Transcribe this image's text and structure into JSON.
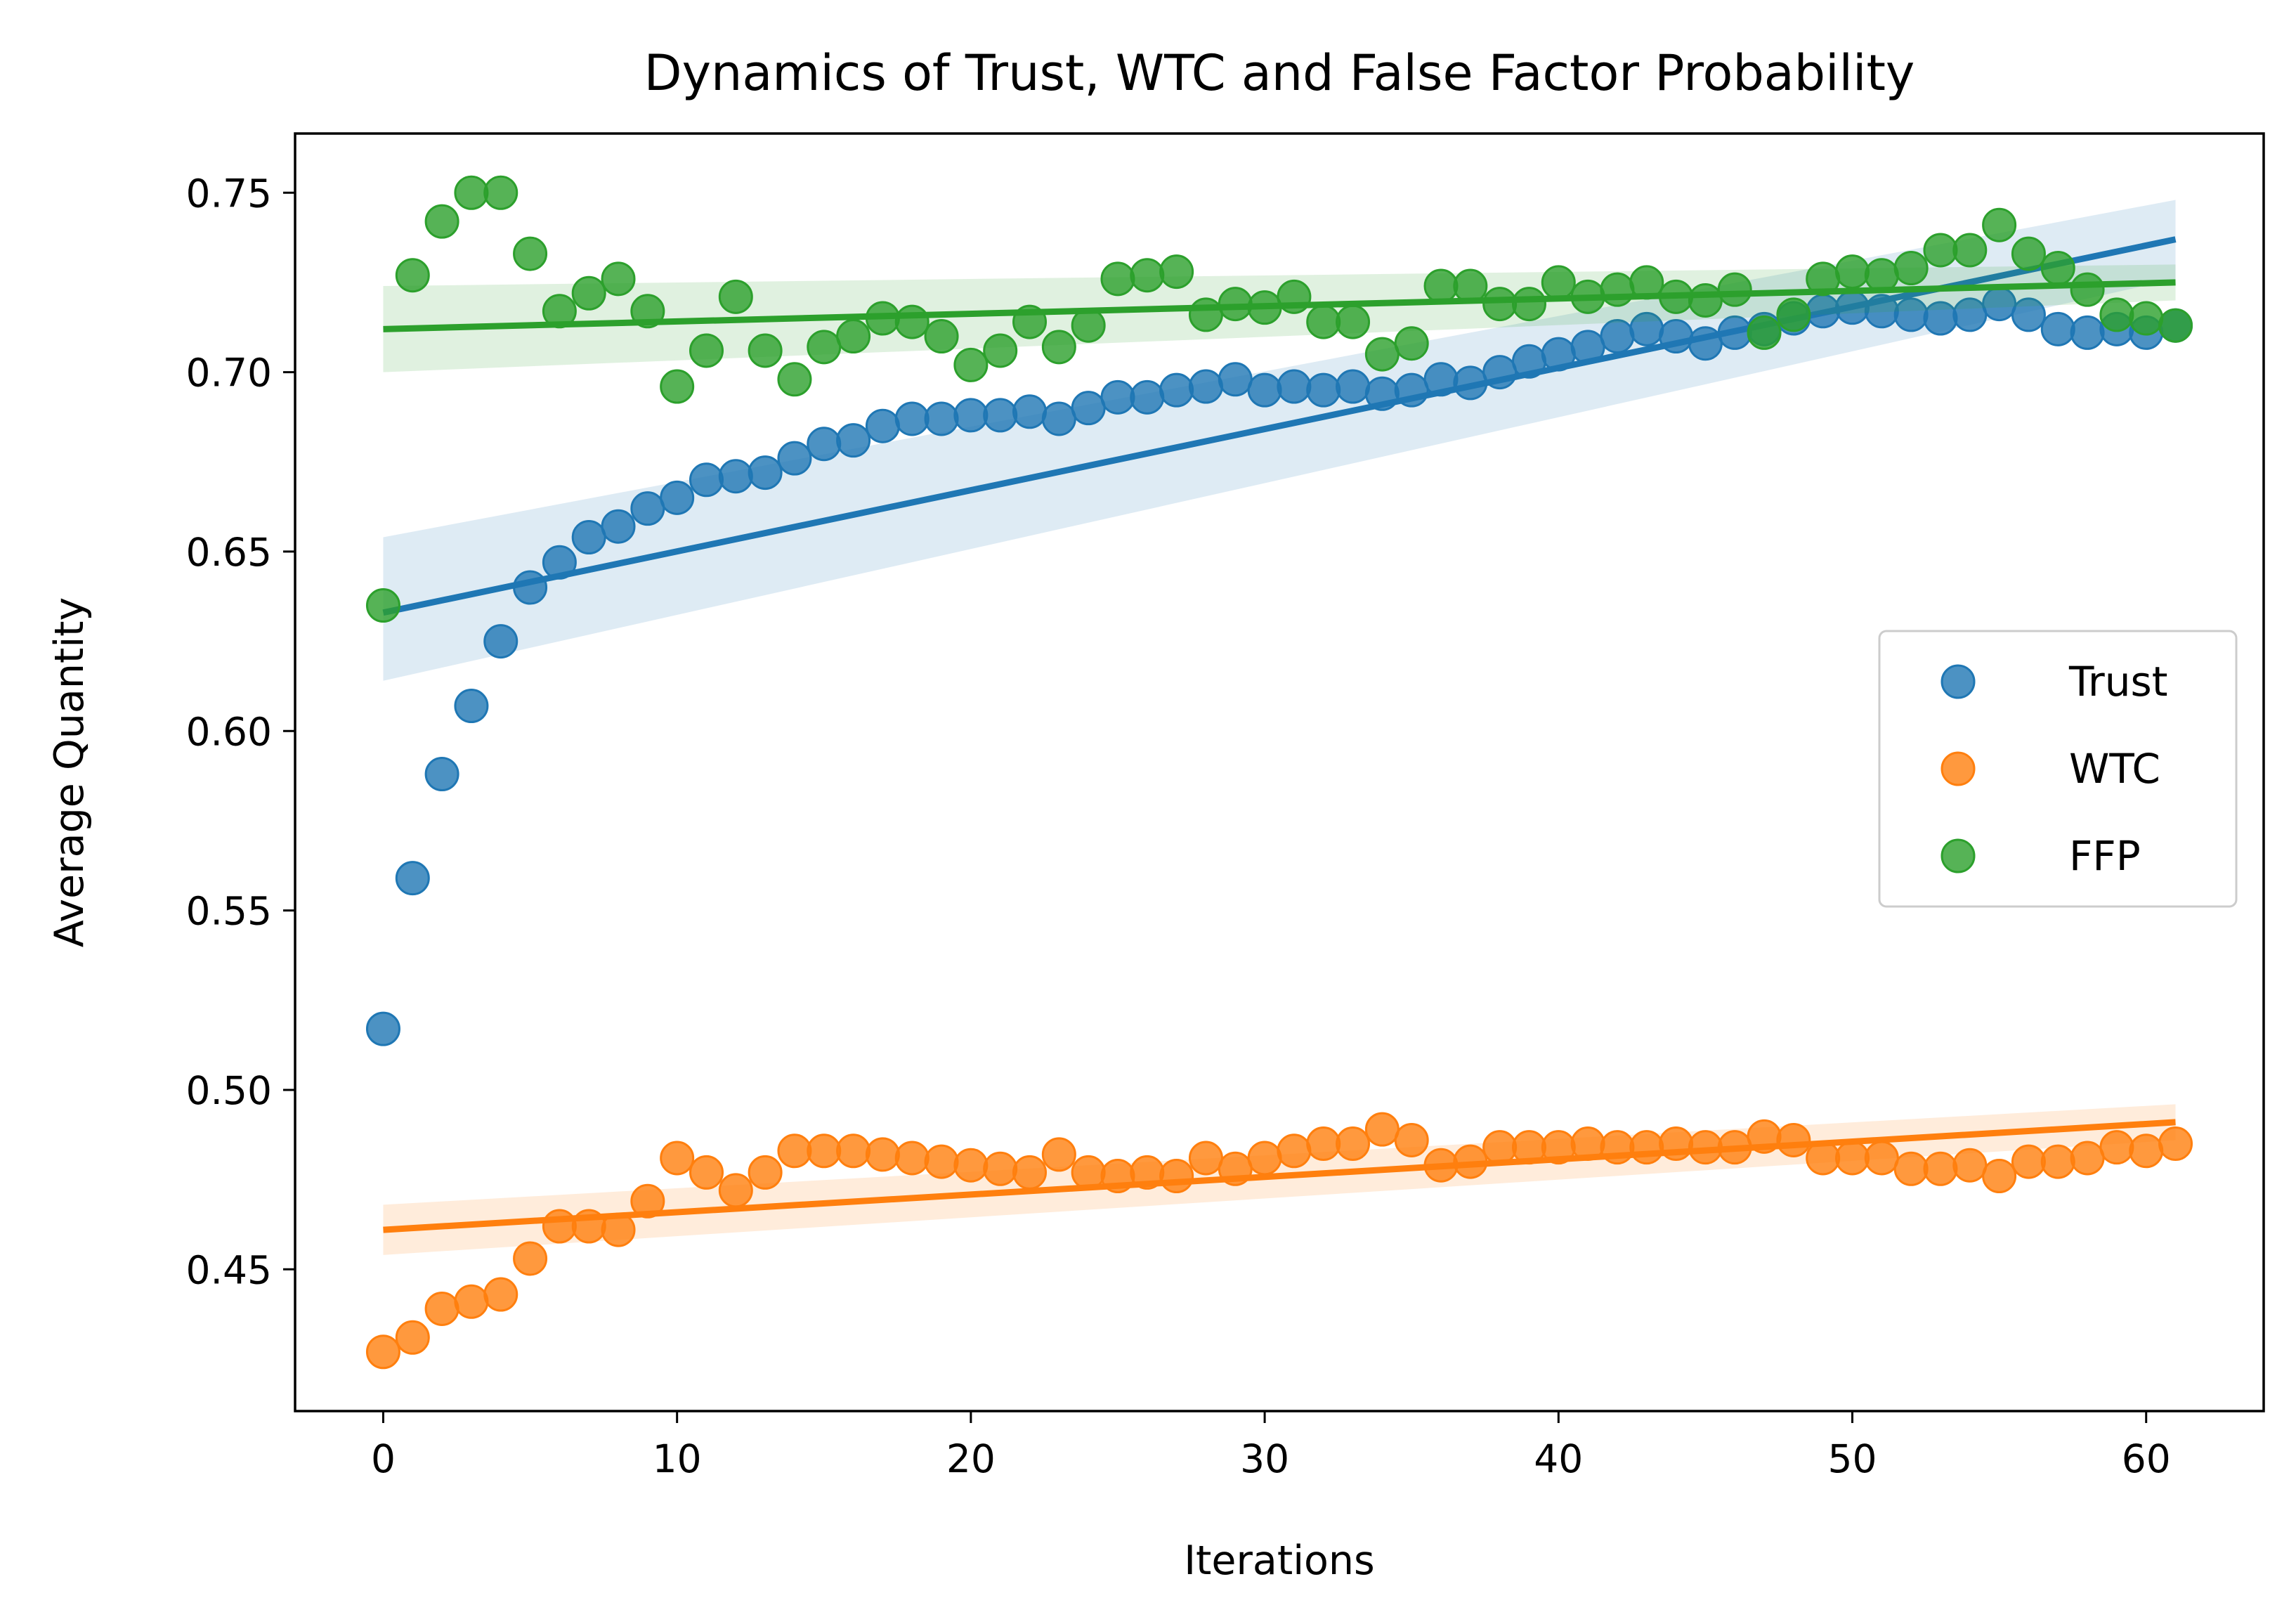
{
  "chart_data": {
    "type": "scatter",
    "title": "Dynamics of Trust, WTC and False Factor Probability",
    "xlabel": "Iterations",
    "ylabel": "Average Quantity",
    "xlim": [
      -3,
      64
    ],
    "ylim": [
      0.4105,
      0.7665
    ],
    "xticks": [
      0,
      10,
      20,
      30,
      40,
      50,
      60
    ],
    "yticks": [
      0.45,
      0.5,
      0.55,
      0.6,
      0.65,
      0.7,
      0.75
    ],
    "ytick_labels": [
      "0.45",
      "0.50",
      "0.55",
      "0.60",
      "0.65",
      "0.70",
      "0.75"
    ],
    "grid": false,
    "legend_position": "center-right",
    "x": [
      0,
      1,
      2,
      3,
      4,
      5,
      6,
      7,
      8,
      9,
      10,
      11,
      12,
      13,
      14,
      15,
      16,
      17,
      18,
      19,
      20,
      21,
      22,
      23,
      24,
      25,
      26,
      27,
      28,
      29,
      30,
      31,
      32,
      33,
      34,
      35,
      36,
      37,
      38,
      39,
      40,
      41,
      42,
      43,
      44,
      45,
      46,
      47,
      48,
      49,
      50,
      51,
      52,
      53,
      54,
      55,
      56,
      57,
      58,
      59,
      60,
      61
    ],
    "series": [
      {
        "name": "Trust",
        "color": "#1f77b4",
        "values": [
          0.517,
          0.559,
          0.588,
          0.607,
          0.625,
          0.64,
          0.647,
          0.654,
          0.657,
          0.662,
          0.665,
          0.67,
          0.671,
          0.672,
          0.676,
          0.68,
          0.681,
          0.685,
          0.687,
          0.687,
          0.688,
          0.688,
          0.689,
          0.687,
          0.69,
          0.693,
          0.693,
          0.695,
          0.696,
          0.698,
          0.695,
          0.696,
          0.695,
          0.696,
          0.694,
          0.695,
          0.698,
          0.697,
          0.7,
          0.703,
          0.705,
          0.707,
          0.71,
          0.712,
          0.71,
          0.708,
          0.711,
          0.712,
          0.715,
          0.717,
          0.718,
          0.717,
          0.716,
          0.715,
          0.716,
          0.719,
          0.716,
          0.712,
          0.711,
          0.712,
          0.711,
          0.713
        ],
        "trend": {
          "x": [
            0,
            61
          ],
          "y": [
            0.633,
            0.737
          ],
          "ci_start": [
            0.614,
            0.654
          ],
          "ci_end": [
            0.726,
            0.748
          ]
        }
      },
      {
        "name": "WTC",
        "color": "#ff7f0e",
        "values": [
          0.427,
          0.431,
          0.439,
          0.441,
          0.443,
          0.453,
          0.462,
          0.462,
          0.461,
          0.469,
          0.481,
          0.477,
          0.472,
          0.477,
          0.483,
          0.483,
          0.483,
          0.482,
          0.481,
          0.48,
          0.479,
          0.478,
          0.477,
          0.482,
          0.477,
          0.476,
          0.477,
          0.476,
          0.481,
          0.478,
          0.481,
          0.483,
          0.485,
          0.485,
          0.489,
          0.486,
          0.479,
          0.48,
          0.484,
          0.484,
          0.484,
          0.485,
          0.484,
          0.484,
          0.485,
          0.484,
          0.484,
          0.487,
          0.486,
          0.481,
          0.481,
          0.481,
          0.478,
          0.478,
          0.479,
          0.476,
          0.48,
          0.48,
          0.481,
          0.484,
          0.483,
          0.485
        ],
        "trend": {
          "x": [
            0,
            61
          ],
          "y": [
            0.461,
            0.491
          ],
          "ci_start": [
            0.454,
            0.468
          ],
          "ci_end": [
            0.486,
            0.496
          ]
        }
      },
      {
        "name": "FFP",
        "color": "#2ca02c",
        "values": [
          0.635,
          0.727,
          0.742,
          0.75,
          0.75,
          0.733,
          0.717,
          0.722,
          0.726,
          0.717,
          0.696,
          0.706,
          0.721,
          0.706,
          0.698,
          0.707,
          0.71,
          0.715,
          0.714,
          0.71,
          0.702,
          0.706,
          0.714,
          0.707,
          0.713,
          0.726,
          0.727,
          0.728,
          0.716,
          0.719,
          0.718,
          0.721,
          0.714,
          0.714,
          0.705,
          0.708,
          0.724,
          0.724,
          0.719,
          0.719,
          0.725,
          0.721,
          0.723,
          0.725,
          0.721,
          0.72,
          0.723,
          0.711,
          0.716,
          0.726,
          0.728,
          0.727,
          0.729,
          0.734,
          0.734,
          0.741,
          0.733,
          0.729,
          0.723,
          0.716,
          0.715,
          0.713
        ],
        "trend": {
          "x": [
            0,
            61
          ],
          "y": [
            0.712,
            0.725
          ],
          "ci_start": [
            0.7,
            0.724
          ],
          "ci_end": [
            0.72,
            0.73
          ]
        }
      }
    ]
  }
}
